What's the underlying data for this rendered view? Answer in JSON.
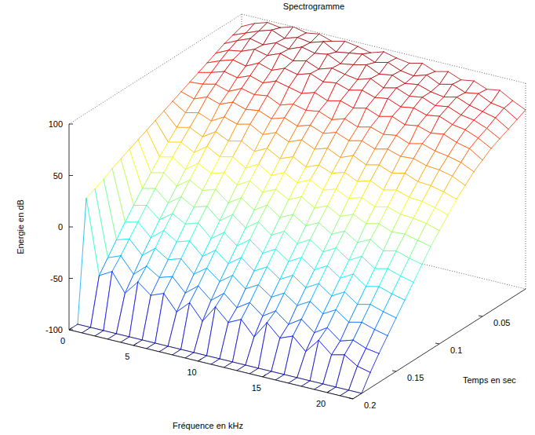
{
  "chart_data": {
    "type": "mesh",
    "title": "Spectrogramme",
    "x_label": "Fréquence en kHz",
    "y_label": "Temps en sec",
    "z_label": "Energie en dB",
    "x": [
      0,
      1,
      2,
      3,
      4,
      5,
      6,
      7,
      8,
      9,
      10,
      11,
      12,
      13,
      14,
      15,
      16,
      17,
      18,
      19,
      20,
      21,
      22
    ],
    "y": [
      0,
      0.01,
      0.02,
      0.03,
      0.04,
      0.05,
      0.06,
      0.07,
      0.08,
      0.09,
      0.1,
      0.11,
      0.12,
      0.13,
      0.14,
      0.15,
      0.16,
      0.17,
      0.18,
      0.19,
      0.2
    ],
    "z": [
      [
        88,
        94,
        98,
        96,
        100,
        97,
        99,
        95,
        98,
        96,
        93,
        97,
        94,
        92,
        95,
        90,
        93,
        88,
        90,
        85,
        87,
        80,
        74
      ],
      [
        85,
        90,
        95,
        99,
        94,
        98,
        96,
        100,
        93,
        95,
        97,
        92,
        95,
        90,
        88,
        92,
        86,
        89,
        84,
        86,
        80,
        78,
        70
      ],
      [
        82,
        88,
        93,
        90,
        95,
        92,
        97,
        94,
        96,
        90,
        92,
        95,
        89,
        91,
        86,
        88,
        84,
        82,
        85,
        80,
        77,
        74,
        66
      ],
      [
        78,
        84,
        86,
        91,
        88,
        93,
        89,
        92,
        87,
        91,
        88,
        86,
        90,
        84,
        87,
        82,
        84,
        79,
        81,
        76,
        74,
        69,
        62
      ],
      [
        74,
        79,
        83,
        80,
        86,
        82,
        87,
        84,
        88,
        83,
        85,
        81,
        84,
        80,
        82,
        77,
        79,
        75,
        77,
        72,
        70,
        65,
        58
      ],
      [
        70,
        73,
        77,
        74,
        79,
        75,
        80,
        77,
        74,
        78,
        73,
        76,
        72,
        75,
        70,
        73,
        68,
        70,
        66,
        68,
        63,
        60,
        52
      ],
      [
        66,
        67,
        70,
        66,
        72,
        69,
        71,
        65,
        69,
        66,
        68,
        63,
        67,
        62,
        65,
        61,
        63,
        58,
        61,
        57,
        55,
        52,
        46
      ],
      [
        62,
        58,
        63,
        59,
        64,
        60,
        62,
        57,
        61,
        56,
        60,
        55,
        59,
        54,
        57,
        52,
        55,
        51,
        52,
        48,
        47,
        44,
        38
      ],
      [
        58,
        50,
        53,
        48,
        55,
        51,
        54,
        47,
        52,
        46,
        51,
        45,
        49,
        43,
        48,
        42,
        45,
        40,
        43,
        38,
        37,
        34,
        30
      ],
      [
        54,
        41,
        44,
        38,
        46,
        40,
        43,
        36,
        42,
        35,
        40,
        33,
        38,
        33,
        37,
        31,
        35,
        29,
        32,
        28,
        27,
        24,
        20
      ],
      [
        50,
        32,
        35,
        28,
        37,
        30,
        33,
        25,
        32,
        24,
        30,
        23,
        29,
        22,
        26,
        20,
        24,
        18,
        21,
        17,
        16,
        14,
        10
      ],
      [
        46,
        23,
        26,
        17,
        26,
        19,
        23,
        14,
        21,
        13,
        19,
        12,
        18,
        10,
        15,
        8,
        13,
        7,
        10,
        5,
        6,
        3,
        0
      ],
      [
        42,
        13,
        16,
        6,
        15,
        8,
        12,
        2,
        10,
        1,
        9,
        0,
        6,
        -2,
        4,
        -4,
        2,
        -6,
        0,
        -8,
        -5,
        -9,
        -12
      ],
      [
        38,
        3,
        6,
        -5,
        4,
        -3,
        1,
        -10,
        -1,
        -11,
        -2,
        -12,
        -5,
        -14,
        -7,
        -16,
        -9,
        -18,
        -11,
        -20,
        -17,
        -21,
        -24
      ],
      [
        34,
        -8,
        -5,
        -16,
        -7,
        -14,
        -10,
        -22,
        -13,
        -23,
        -14,
        -24,
        -17,
        -26,
        -19,
        -28,
        -21,
        -30,
        -23,
        -32,
        -29,
        -33,
        -36
      ],
      [
        30,
        -19,
        -16,
        -28,
        -18,
        -26,
        -22,
        -34,
        -25,
        -35,
        -26,
        -36,
        -29,
        -38,
        -31,
        -40,
        -33,
        -42,
        -35,
        -44,
        -41,
        -45,
        -48
      ],
      [
        25,
        -31,
        -27,
        -40,
        -30,
        -38,
        -34,
        -46,
        -37,
        -47,
        -38,
        -48,
        -41,
        -50,
        -43,
        -52,
        -45,
        -54,
        -47,
        -56,
        -53,
        -57,
        -60
      ],
      [
        21,
        -43,
        -38,
        -53,
        -42,
        -50,
        -46,
        -59,
        -49,
        -60,
        -50,
        -61,
        -53,
        -63,
        -55,
        -65,
        -57,
        -67,
        -59,
        -69,
        -65,
        -70,
        -72
      ],
      [
        17,
        -55,
        -48,
        -66,
        -52,
        -62,
        -57,
        -72,
        -60,
        -75,
        -58,
        -70,
        -64,
        -78,
        -61,
        -73,
        -68,
        -80,
        -66,
        -77,
        -74,
        -82,
        -85
      ],
      [
        -100,
        -100,
        -100,
        -100,
        -100,
        -100,
        -100,
        -100,
        -100,
        -100,
        -100,
        -100,
        -100,
        -100,
        -100,
        -100,
        -100,
        -100,
        -100,
        -100,
        -100,
        -100,
        -100
      ],
      [
        -100,
        -100,
        -100,
        -100,
        -100,
        -100,
        -100,
        -100,
        -100,
        -100,
        -100,
        -100,
        -100,
        -100,
        -100,
        -100,
        -100,
        -100,
        -100,
        -100,
        -100,
        -100,
        -100
      ]
    ],
    "xlim": [
      0,
      22
    ],
    "ylim": [
      0,
      0.2
    ],
    "zlim": [
      -100,
      100
    ],
    "xticks": [
      0,
      5,
      10,
      15,
      20
    ],
    "yticks": [
      0.05,
      0.1,
      0.15,
      0.2
    ],
    "zticks": [
      -100,
      -50,
      0,
      50,
      100
    ],
    "grid": false
  }
}
